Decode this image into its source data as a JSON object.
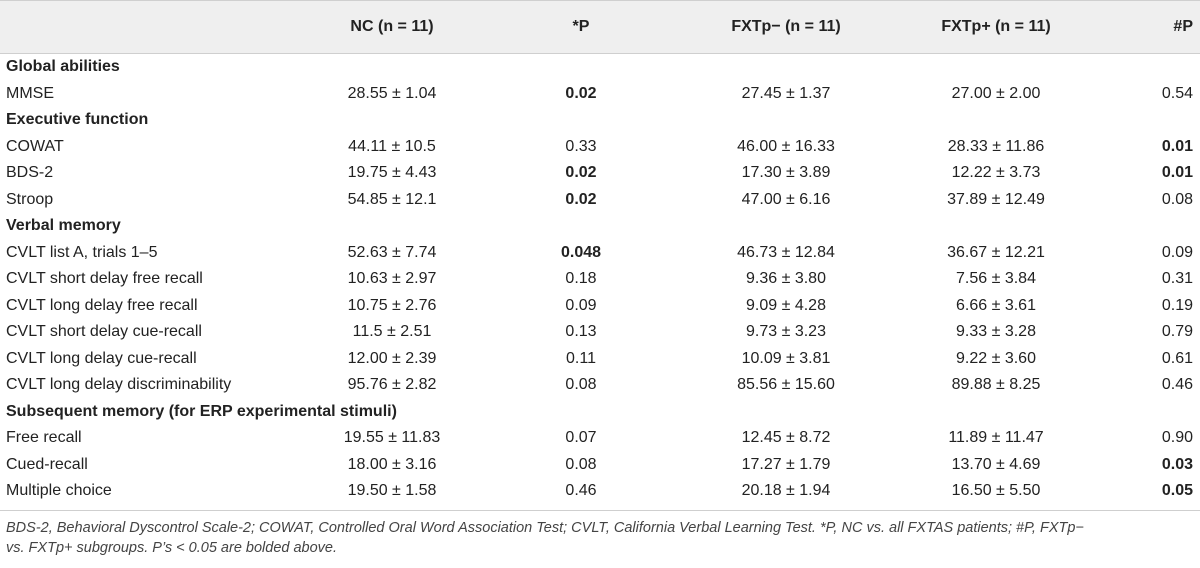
{
  "header": {
    "nc": "NC (n = 11)",
    "p1": "*P",
    "fxtp_minus": "FXTp− (n = 11)",
    "fxtp_plus": "FXTp+ (n = 11)",
    "p2": "#P"
  },
  "rows": [
    {
      "type": "section",
      "label": "Global abilities"
    },
    {
      "type": "data",
      "label": "MMSE",
      "nc": "28.55 ± 1.04",
      "p1": "0.02",
      "p1_bold": true,
      "fm": "27.45 ± 1.37",
      "fp": "27.00 ± 2.00",
      "p2": "0.54",
      "p2_bold": false
    },
    {
      "type": "section",
      "label": "Executive function"
    },
    {
      "type": "data",
      "label": "COWAT",
      "nc": "44.11 ± 10.5",
      "p1": "0.33",
      "p1_bold": false,
      "fm": "46.00 ± 16.33",
      "fp": "28.33 ± 11.86",
      "p2": "0.01",
      "p2_bold": true
    },
    {
      "type": "data",
      "label": "BDS-2",
      "nc": "19.75 ± 4.43",
      "p1": "0.02",
      "p1_bold": true,
      "fm": "17.30 ± 3.89",
      "fp": "12.22 ± 3.73",
      "p2": "0.01",
      "p2_bold": true
    },
    {
      "type": "data",
      "label": "Stroop",
      "nc": "54.85 ± 12.1",
      "p1": "0.02",
      "p1_bold": true,
      "fm": "47.00 ± 6.16",
      "fp": "37.89 ± 12.49",
      "p2": "0.08",
      "p2_bold": false
    },
    {
      "type": "section",
      "label": "Verbal memory"
    },
    {
      "type": "data",
      "label": "CVLT list A, trials 1–5",
      "nc": "52.63 ± 7.74",
      "p1": "0.048",
      "p1_bold": true,
      "fm": "46.73 ± 12.84",
      "fp": "36.67 ± 12.21",
      "p2": "0.09",
      "p2_bold": false
    },
    {
      "type": "data",
      "label": "CVLT short delay free recall",
      "nc": "10.63 ± 2.97",
      "p1": "0.18",
      "p1_bold": false,
      "fm": "9.36 ± 3.80",
      "fp": "7.56 ± 3.84",
      "p2": "0.31",
      "p2_bold": false
    },
    {
      "type": "data",
      "label": "CVLT long delay free recall",
      "nc": "10.75 ± 2.76",
      "p1": "0.09",
      "p1_bold": false,
      "fm": "9.09 ± 4.28",
      "fp": "6.66 ± 3.61",
      "p2": "0.19",
      "p2_bold": false
    },
    {
      "type": "data",
      "label": "CVLT short delay cue-recall",
      "nc": "11.5 ± 2.51",
      "p1": "0.13",
      "p1_bold": false,
      "fm": "9.73 ± 3.23",
      "fp": "9.33 ± 3.28",
      "p2": "0.79",
      "p2_bold": false
    },
    {
      "type": "data",
      "label": "CVLT long delay cue-recall",
      "nc": "12.00 ± 2.39",
      "p1": "0.11",
      "p1_bold": false,
      "fm": "10.09 ± 3.81",
      "fp": "9.22 ± 3.60",
      "p2": "0.61",
      "p2_bold": false
    },
    {
      "type": "data",
      "label": "CVLT long delay discriminability",
      "nc": "95.76 ± 2.82",
      "p1": "0.08",
      "p1_bold": false,
      "fm": "85.56 ± 15.60",
      "fp": "89.88 ± 8.25",
      "p2": "0.46",
      "p2_bold": false
    },
    {
      "type": "section",
      "label": "Subsequent memory (for ERP experimental stimuli)"
    },
    {
      "type": "data",
      "label": "Free recall",
      "nc": "19.55 ± 11.83",
      "p1": "0.07",
      "p1_bold": false,
      "fm": "12.45 ± 8.72",
      "fp": "11.89 ± 11.47",
      "p2": "0.90",
      "p2_bold": false
    },
    {
      "type": "data",
      "label": "Cued-recall",
      "nc": "18.00 ± 3.16",
      "p1": "0.08",
      "p1_bold": false,
      "fm": "17.27 ± 1.79",
      "fp": "13.70 ± 4.69",
      "p2": "0.03",
      "p2_bold": true
    },
    {
      "type": "data",
      "label": "Multiple choice",
      "nc": "19.50 ± 1.58",
      "p1": "0.46",
      "p1_bold": false,
      "fm": "20.18 ± 1.94",
      "fp": "16.50 ± 5.50",
      "p2": "0.05",
      "p2_bold": true
    }
  ],
  "footnote": {
    "line1": "BDS-2, Behavioral Dyscontrol Scale-2; COWAT, Controlled Oral Word Association Test; CVLT, California Verbal Learning Test. *P, NC vs. all FXTAS patients; #P, FXTp−",
    "line2": "vs. FXTp+ subgroups. P’s < 0.05 are bolded above."
  }
}
